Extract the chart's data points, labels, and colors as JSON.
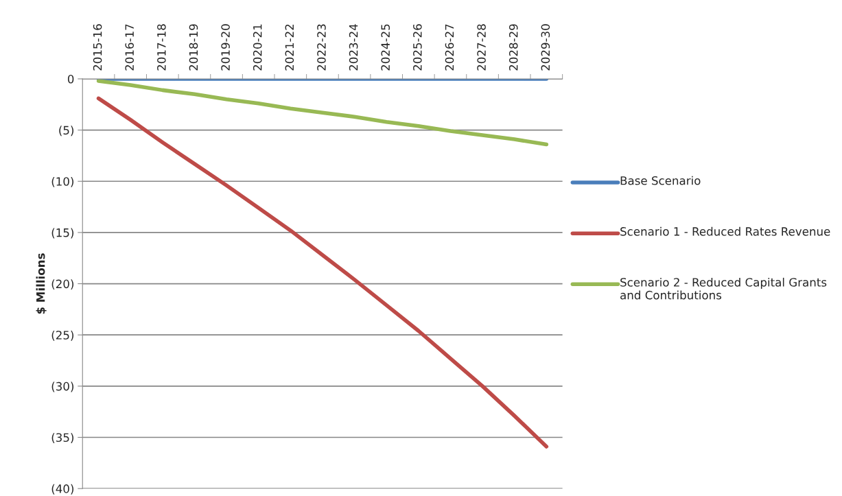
{
  "chart_data": {
    "type": "line",
    "ylabel": "$ Millions",
    "categories": [
      "2015-16",
      "2016-17",
      "2017-18",
      "2018-19",
      "2019-20",
      "2020-21",
      "2021-22",
      "2022-23",
      "2023-24",
      "2024-25",
      "2025-26",
      "2026-27",
      "2027-28",
      "2028-29",
      "2029-30"
    ],
    "series": [
      {
        "name": "Base Scenario",
        "color": "#4a7ebb",
        "values": [
          0,
          0,
          0,
          0,
          0,
          0,
          0,
          0,
          0,
          0,
          0,
          0,
          0,
          0,
          0
        ]
      },
      {
        "name": "Scenario 1 - Reduced Rates Revenue",
        "color": "#be4b48",
        "values": [
          -1.9,
          -4.0,
          -6.2,
          -8.3,
          -10.4,
          -12.6,
          -14.8,
          -17.2,
          -19.6,
          -22.1,
          -24.6,
          -27.3,
          -30.0,
          -32.9,
          -35.9
        ]
      },
      {
        "name": "Scenario 2 - Reduced Capital Grants and Contributions",
        "color": "#98b954",
        "values": [
          -0.2,
          -0.6,
          -1.1,
          -1.5,
          -2.0,
          -2.4,
          -2.9,
          -3.3,
          -3.7,
          -4.2,
          -4.6,
          -5.1,
          -5.5,
          -5.9,
          -6.4
        ]
      }
    ],
    "ylim": [
      -40,
      0
    ],
    "yticks": [
      {
        "value": -40,
        "label": "(40)"
      },
      {
        "value": -35,
        "label": "(35)"
      },
      {
        "value": -30,
        "label": "(30)"
      },
      {
        "value": -25,
        "label": "(25)"
      },
      {
        "value": -20,
        "label": "(20)"
      },
      {
        "value": -15,
        "label": "(15)"
      },
      {
        "value": -10,
        "label": "(10)"
      },
      {
        "value": -5,
        "label": "(5)"
      },
      0
    ],
    "grid": "y",
    "legend": "right",
    "marker": "none",
    "line_style": "solid"
  }
}
